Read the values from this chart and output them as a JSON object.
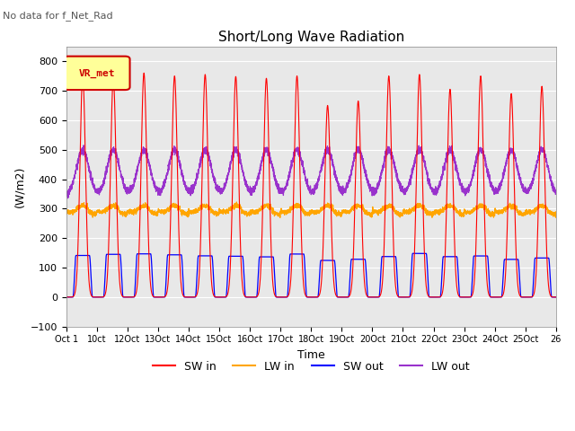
{
  "title": "Short/Long Wave Radiation",
  "subtitle": "No data for f_Net_Rad",
  "xlabel": "Time",
  "ylabel": "(W/m2)",
  "ylim": [
    -100,
    850
  ],
  "yticks": [
    -100,
    0,
    100,
    200,
    300,
    400,
    500,
    600,
    700,
    800
  ],
  "legend_label": "VR_met",
  "xtick_labels": [
    "Oct 1",
    "10ct",
    "12Oct",
    "13Oct",
    "14Oct",
    "15Oct",
    "16Oct",
    "17Oct",
    "18Oct",
    "19Oct",
    "20Oct",
    "21Oct",
    "22Oct",
    "23Oct",
    "24Oct",
    "25Oct",
    "26"
  ],
  "colors": {
    "sw_in": "#FF0000",
    "lw_in": "#FFA500",
    "sw_out": "#0000FF",
    "lw_out": "#9932CC",
    "background": "#E8E8E8",
    "legend_box": "#FFFF99",
    "legend_border": "#FF0000"
  },
  "n_days": 16,
  "sw_in_peak": 750,
  "lw_in_base": 285,
  "sw_out_peak": 150,
  "lw_out_night": 345,
  "lw_out_day_add": 155
}
